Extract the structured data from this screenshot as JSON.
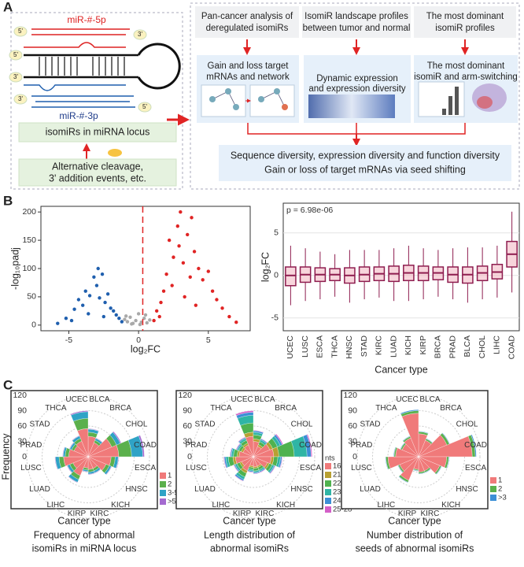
{
  "panel_labels": [
    "A",
    "B",
    "C"
  ],
  "panel_a": {
    "mirna_5p": "miR-#-5p",
    "mirna_3p": "miR-#-3p",
    "end_5": "5'",
    "end_3": "3'",
    "locus": "isomiRs in miRNA locus",
    "events": [
      "Alternative cleavage,",
      "3' addition events, etc."
    ],
    "analyses": [
      {
        "title": [
          "Pan-cancer analysis of",
          "deregulated isomiRs"
        ],
        "result": [
          "Gain and loss target",
          "mRNAs and network"
        ]
      },
      {
        "title": [
          "IsomiR landscape profiles",
          "between tumor and normal"
        ],
        "result": [
          "Dynamic expression",
          "and expression diversity"
        ]
      },
      {
        "title": [
          "The most dominant",
          "isomiR profiles"
        ],
        "result": [
          "The most dominant",
          "isomiR and arm-switching"
        ]
      }
    ],
    "summary": [
      "Sequence diversity, expression diversity and function diversity",
      "Gain or loss of target mRNAs via seed shifting"
    ]
  },
  "chart_data": [
    {
      "type": "scatter",
      "xlabel": "log₂FC",
      "ylabel": "-log₁₀padj",
      "xlim": [
        -7,
        8
      ],
      "ylim": [
        -10,
        210
      ],
      "xticks": [
        -5,
        0,
        5
      ],
      "yticks": [
        0,
        50,
        100,
        150,
        200
      ],
      "vline": 0.3,
      "series": [
        {
          "color": "#1f5fae",
          "x": [
            -5.8,
            -5.2,
            -4.6,
            -4.3,
            -4,
            -3.8,
            -3.5,
            -3.2,
            -3,
            -2.8,
            -2.6,
            -2.4,
            -2.2,
            -2,
            -1.8,
            -1.6,
            -1.4,
            -1.2,
            -3.6,
            -2.5,
            -4.8,
            -2.9
          ],
          "values": [
            3,
            12,
            28,
            45,
            35,
            60,
            52,
            85,
            70,
            48,
            90,
            40,
            55,
            30,
            25,
            18,
            12,
            6,
            20,
            15,
            8,
            100
          ]
        },
        {
          "color": "#a9a9a9",
          "x": [
            -1,
            -0.8,
            -0.6,
            -0.4,
            -0.2,
            0,
            0.2,
            0.4,
            0.6,
            0.8,
            -0.5,
            0.1,
            0.5,
            -0.9
          ],
          "values": [
            10,
            6,
            14,
            3,
            8,
            20,
            5,
            12,
            4,
            9,
            2,
            1,
            18,
            16
          ]
        },
        {
          "color": "#e02424",
          "x": [
            1.1,
            1.3,
            1.6,
            1.8,
            2,
            2.2,
            2.5,
            2.8,
            3,
            3.2,
            3.5,
            3.8,
            4,
            4.3,
            4.6,
            5,
            5.3,
            5.6,
            6,
            6.5,
            7,
            2.4,
            3.3,
            4.1,
            1.5,
            2.9,
            3.7
          ],
          "values": [
            8,
            25,
            40,
            60,
            90,
            150,
            120,
            175,
            200,
            110,
            160,
            190,
            130,
            100,
            80,
            95,
            60,
            45,
            30,
            15,
            5,
            70,
            50,
            35,
            15,
            140,
            85
          ]
        }
      ]
    },
    {
      "type": "box",
      "annotation": "p = 6.98e-06",
      "xlabel": "Cancer type",
      "ylabel": "log₂FC",
      "ylim": [
        -6.5,
        8.5
      ],
      "yticks": [
        -5,
        0,
        5
      ],
      "color": "#8e1d4f",
      "fill": "#f3b3c0",
      "categories": [
        "UCEC",
        "LUSC",
        "ESCA",
        "THCA",
        "HNSC",
        "STAD",
        "KIRC",
        "LUAD",
        "KICH",
        "KIRP",
        "BRCA",
        "PRAD",
        "BLCA",
        "CHOL",
        "LIHC",
        "COAD"
      ],
      "boxes": [
        {
          "whislo": -3.5,
          "q1": -1.2,
          "median": 0,
          "q3": 1,
          "whishi": 3.5
        },
        {
          "whislo": -3,
          "q1": -0.8,
          "median": 0.1,
          "q3": 1,
          "whishi": 3.2
        },
        {
          "whislo": -2.8,
          "q1": -0.7,
          "median": 0.1,
          "q3": 0.9,
          "whishi": 2.8
        },
        {
          "whislo": -2.5,
          "q1": -0.6,
          "median": 0.1,
          "q3": 0.8,
          "whishi": 2.5
        },
        {
          "whislo": -3.2,
          "q1": -0.9,
          "median": 0,
          "q3": 0.9,
          "whishi": 3
        },
        {
          "whislo": -2.8,
          "q1": -0.7,
          "median": 0.1,
          "q3": 1,
          "whishi": 3
        },
        {
          "whislo": -2.6,
          "q1": -0.6,
          "median": 0.2,
          "q3": 1,
          "whishi": 3
        },
        {
          "whislo": -3,
          "q1": -0.7,
          "median": 0.2,
          "q3": 1.1,
          "whishi": 3.2
        },
        {
          "whislo": -3,
          "q1": -0.6,
          "median": 0.3,
          "q3": 1.2,
          "whishi": 3.5
        },
        {
          "whislo": -2.8,
          "q1": -0.6,
          "median": 0.3,
          "q3": 1.1,
          "whishi": 3.2
        },
        {
          "whislo": -2.5,
          "q1": -0.5,
          "median": 0.3,
          "q3": 1,
          "whishi": 3
        },
        {
          "whislo": -2.8,
          "q1": -0.8,
          "median": 0.1,
          "q3": 1,
          "whishi": 3.2
        },
        {
          "whislo": -3.2,
          "q1": -0.9,
          "median": 0.1,
          "q3": 1,
          "whishi": 3.3
        },
        {
          "whislo": -2.8,
          "q1": -0.6,
          "median": 0.3,
          "q3": 1.1,
          "whishi": 3.3
        },
        {
          "whislo": -2.6,
          "q1": -0.4,
          "median": 0.4,
          "q3": 1.3,
          "whishi": 3.5
        },
        {
          "whislo": -2,
          "q1": 1,
          "median": 2.5,
          "q3": 4,
          "whishi": 7.5
        }
      ]
    },
    {
      "type": "polar",
      "ylabel": "Frequency",
      "xlabel": "Cancer type",
      "caption": [
        "Frequency of abnormal",
        "isomiRs in miRNA locus"
      ],
      "rlim": [
        0,
        120
      ],
      "rticks": [
        0,
        30,
        60,
        90,
        120
      ],
      "categories": [
        "BLCA",
        "BRCA",
        "CHOL",
        "COAD",
        "ESCA",
        "HNSC",
        "KICH",
        "KIRC",
        "KIRP",
        "LIHC",
        "LUAD",
        "LUSC",
        "PRAD",
        "STAD",
        "THCA",
        "UCEC"
      ],
      "series": [
        {
          "name": "1",
          "color": "#f07a7a",
          "values": [
            40,
            30,
            50,
            60,
            45,
            38,
            25,
            25,
            22,
            40,
            32,
            48,
            38,
            30,
            33,
            55
          ]
        },
        {
          "name": "2",
          "color": "#5bb04c",
          "values": [
            8,
            5,
            10,
            25,
            8,
            7,
            5,
            5,
            4,
            8,
            7,
            9,
            7,
            5,
            6,
            20
          ]
        },
        {
          "name": "3-5",
          "color": "#2fa3c6",
          "values": [
            6,
            4,
            8,
            22,
            6,
            4,
            4,
            4,
            3,
            6,
            5,
            7,
            4,
            4,
            5,
            13
          ]
        },
        {
          "name": ">5",
          "color": "#a46ad0",
          "values": [
            1,
            1,
            2,
            3,
            1,
            1,
            1,
            1,
            1,
            1,
            1,
            1,
            1,
            1,
            1,
            2
          ]
        }
      ]
    },
    {
      "type": "polar",
      "xlabel": "Cancer type",
      "caption": [
        "Length distribution of",
        "abnormal isomiRs"
      ],
      "legend_title": "nts",
      "rlim": [
        0,
        120
      ],
      "rticks": [
        0,
        30,
        60,
        90,
        120
      ],
      "categories": [
        "BLCA",
        "BRCA",
        "CHOL",
        "COAD",
        "ESCA",
        "HNSC",
        "KICH",
        "KIRC",
        "KIRP",
        "LIHC",
        "LUAD",
        "LUSC",
        "PRAD",
        "STAD",
        "THCA",
        "UCEC"
      ],
      "series": [
        {
          "name": "16-20",
          "color": "#f07a7a",
          "values": [
            30,
            22,
            35,
            40,
            35,
            30,
            20,
            20,
            18,
            30,
            25,
            35,
            28,
            22,
            25,
            40
          ]
        },
        {
          "name": "21",
          "color": "#b8a032",
          "values": [
            5,
            4,
            6,
            10,
            5,
            4,
            3,
            3,
            3,
            5,
            4,
            5,
            4,
            4,
            4,
            8
          ]
        },
        {
          "name": "22",
          "color": "#4fb24f",
          "values": [
            8,
            6,
            10,
            30,
            8,
            6,
            5,
            5,
            4,
            8,
            6,
            9,
            7,
            5,
            6,
            18
          ]
        },
        {
          "name": "23",
          "color": "#2fb5a5",
          "values": [
            5,
            4,
            6,
            25,
            5,
            4,
            3,
            3,
            3,
            5,
            4,
            5,
            4,
            3,
            4,
            15
          ]
        },
        {
          "name": "24",
          "color": "#3c8fd6",
          "values": [
            3,
            2,
            4,
            8,
            3,
            2,
            2,
            2,
            2,
            3,
            2,
            3,
            2,
            2,
            2,
            6
          ]
        },
        {
          "name": "25-28",
          "color": "#d45fc8",
          "values": [
            1,
            1,
            2,
            2,
            1,
            1,
            1,
            1,
            1,
            1,
            1,
            1,
            1,
            1,
            1,
            3
          ]
        }
      ]
    },
    {
      "type": "polar",
      "xlabel": "Cancer type",
      "caption": [
        "Number distribution of",
        "seeds of abnormal isomiRs"
      ],
      "rlim": [
        0,
        120
      ],
      "rticks": [
        0,
        30,
        60,
        90,
        120
      ],
      "categories": [
        "BLCA",
        "BRCA",
        "CHOL",
        "COAD",
        "ESCA",
        "HNSC",
        "KICH",
        "KIRC",
        "KIRP",
        "LIHC",
        "LUAD",
        "LUSC",
        "PRAD",
        "STAD",
        "THCA",
        "UCEC"
      ],
      "series": [
        {
          "name": "1",
          "color": "#f07a7a",
          "values": [
            45,
            35,
            60,
            105,
            55,
            45,
            30,
            30,
            25,
            50,
            40,
            60,
            45,
            35,
            40,
            85
          ]
        },
        {
          "name": "2",
          "color": "#5bb04c",
          "values": [
            4,
            3,
            5,
            6,
            4,
            3,
            3,
            3,
            2,
            4,
            3,
            4,
            3,
            3,
            3,
            5
          ]
        },
        {
          "name": ">3",
          "color": "#3c8fd6",
          "values": [
            1,
            1,
            1,
            2,
            1,
            1,
            1,
            1,
            1,
            1,
            1,
            1,
            1,
            1,
            1,
            2
          ]
        }
      ]
    }
  ]
}
